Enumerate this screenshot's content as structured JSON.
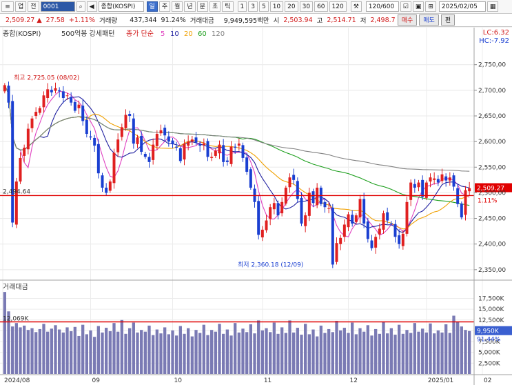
{
  "toolbar": {
    "code": "0001",
    "name_btn": "업",
    "prev_btn": "전",
    "index_name": "종합(KOSPI)",
    "periods": [
      "일",
      "주",
      "월",
      "년",
      "분",
      "초",
      "틱"
    ],
    "intervals": [
      "1",
      "3",
      "5",
      "10",
      "20",
      "30",
      "60",
      "120"
    ],
    "count": "120/600",
    "date": "2025/02/05"
  },
  "quote": {
    "price": "2,509.27",
    "arrow": "▲",
    "change": "27.58",
    "change_pct": "+1.11%",
    "volume_label": "거래량",
    "volume": "437,344",
    "volume_pct": "91.24%",
    "value_label": "거래대금",
    "value": "9,949,595백만",
    "open_label": "시",
    "open": "2,503.94",
    "high_label": "고",
    "high": "2,514.71",
    "low_label": "저",
    "low": "2,498.7",
    "buy_btn": "매수",
    "sell_btn": "매도",
    "exit_btn": "편"
  },
  "chart_header": {
    "title": "종합(KOSPI)",
    "pattern": "500억봉 강세패턴",
    "ma_label": "종가 단순",
    "ma_periods": [
      "5",
      "10",
      "20",
      "60",
      "120"
    ],
    "ma_colors": [
      "#e040c0",
      "#2020a0",
      "#f0a000",
      "#20a020",
      "#808080"
    ],
    "lc": "LC:6.32",
    "hc": "HC:-7.92"
  },
  "colors": {
    "up": "#e02020",
    "down": "#1a3fd1",
    "volume_bar": "#7a7ab4",
    "ref_line": "#e00000"
  },
  "chart_data": {
    "type": "candlestick",
    "price_axis": {
      "ticks": [
        "2,750,00",
        "2,700,00",
        "2,650,00",
        "2,600,00",
        "2,550,00",
        "2,500,00",
        "2,450,00",
        "2,400,00",
        "2,350,00"
      ],
      "ylim": [
        2335,
        2790
      ]
    },
    "x_labels": [
      "2024/08",
      "09",
      "10",
      "11",
      "12",
      "2025/01",
      "02"
    ],
    "annotations": {
      "high_text": "최고 2,725.05 (08/02)",
      "low_text": "최저 2,360.18 (12/09)",
      "ref_value_text": "2,494.64",
      "ref_pct_text": "1.11%",
      "last_price_text": "2,509.27"
    },
    "ref_line_value": 2494.64,
    "last_price": 2509.27,
    "closes": [
      2710,
      2676,
      2442,
      2522,
      2568,
      2588,
      2625,
      2645,
      2658,
      2665,
      2690,
      2702,
      2696,
      2704,
      2698,
      2685,
      2690,
      2676,
      2660,
      2672,
      2640,
      2615,
      2608,
      2592,
      2538,
      2510,
      2500,
      2522,
      2578,
      2604,
      2628,
      2652,
      2650,
      2596,
      2608,
      2580,
      2570,
      2560,
      2594,
      2615,
      2622,
      2612,
      2600,
      2595,
      2588,
      2562,
      2596,
      2600,
      2604,
      2598,
      2592,
      2596,
      2570,
      2570,
      2582,
      2594,
      2560,
      2560,
      2590,
      2588,
      2596,
      2568,
      2541,
      2510,
      2482,
      2418,
      2428,
      2446,
      2472,
      2480,
      2456,
      2482,
      2510,
      2530,
      2525,
      2488,
      2440,
      2456,
      2500,
      2480,
      2510,
      2478,
      2472,
      2470,
      2360,
      2402,
      2412,
      2438,
      2458,
      2440,
      2456,
      2488,
      2440,
      2410,
      2392,
      2414,
      2430,
      2460,
      2446,
      2440,
      2414,
      2400,
      2420,
      2482,
      2520,
      2510,
      2520,
      2492,
      2520,
      2530,
      2528,
      2520,
      2536,
      2524,
      2530,
      2512,
      2478,
      2452,
      2505,
      2509
    ],
    "volume_axis": {
      "ticks": [
        "17,500K",
        "15,000K",
        "12,500K",
        "10,000K",
        "7,500K",
        "5,000K",
        "2,500K"
      ],
      "ylim": [
        0,
        19500
      ]
    },
    "volume_title": "거래대금",
    "volume_ref_text": "12,069K",
    "volume_last_text": "9,950K",
    "volume_last_pct_text": "91.44%",
    "volume_ref_value": 12069,
    "volumes": [
      19000,
      14500,
      11000,
      11800,
      10800,
      11200,
      10200,
      10600,
      9700,
      10400,
      11600,
      9800,
      10500,
      11300,
      10300,
      9600,
      10800,
      9900,
      10900,
      8800,
      11400,
      9200,
      10100,
      8600,
      11100,
      9600,
      10700,
      9900,
      11800,
      9800,
      12500,
      9300,
      10600,
      11900,
      9600,
      10200,
      9800,
      11200,
      9000,
      10300,
      9400,
      10800,
      9200,
      10100,
      8900,
      11100,
      9300,
      10600,
      8700,
      10200,
      9500,
      11400,
      9000,
      10200,
      9800,
      11600,
      9300,
      10300,
      8900,
      11800,
      9600,
      10500,
      9700,
      11500,
      9400,
      12400,
      10100,
      10600,
      9700,
      11900,
      9300,
      10800,
      9500,
      12400,
      9600,
      10700,
      9100,
      11600,
      9200,
      10300,
      8700,
      11200,
      9500,
      10400,
      9700,
      12300,
      10100,
      10700,
      9500,
      11900,
      9200,
      10600,
      9800,
      11300,
      8900,
      10400,
      9300,
      12100,
      9400,
      10600,
      9100,
      11400,
      9300,
      10200,
      9500,
      11800,
      9800,
      10500,
      9600,
      11700,
      9400,
      10100,
      9600,
      11500,
      9500,
      13500,
      12000,
      11000,
      10200,
      9950
    ]
  }
}
